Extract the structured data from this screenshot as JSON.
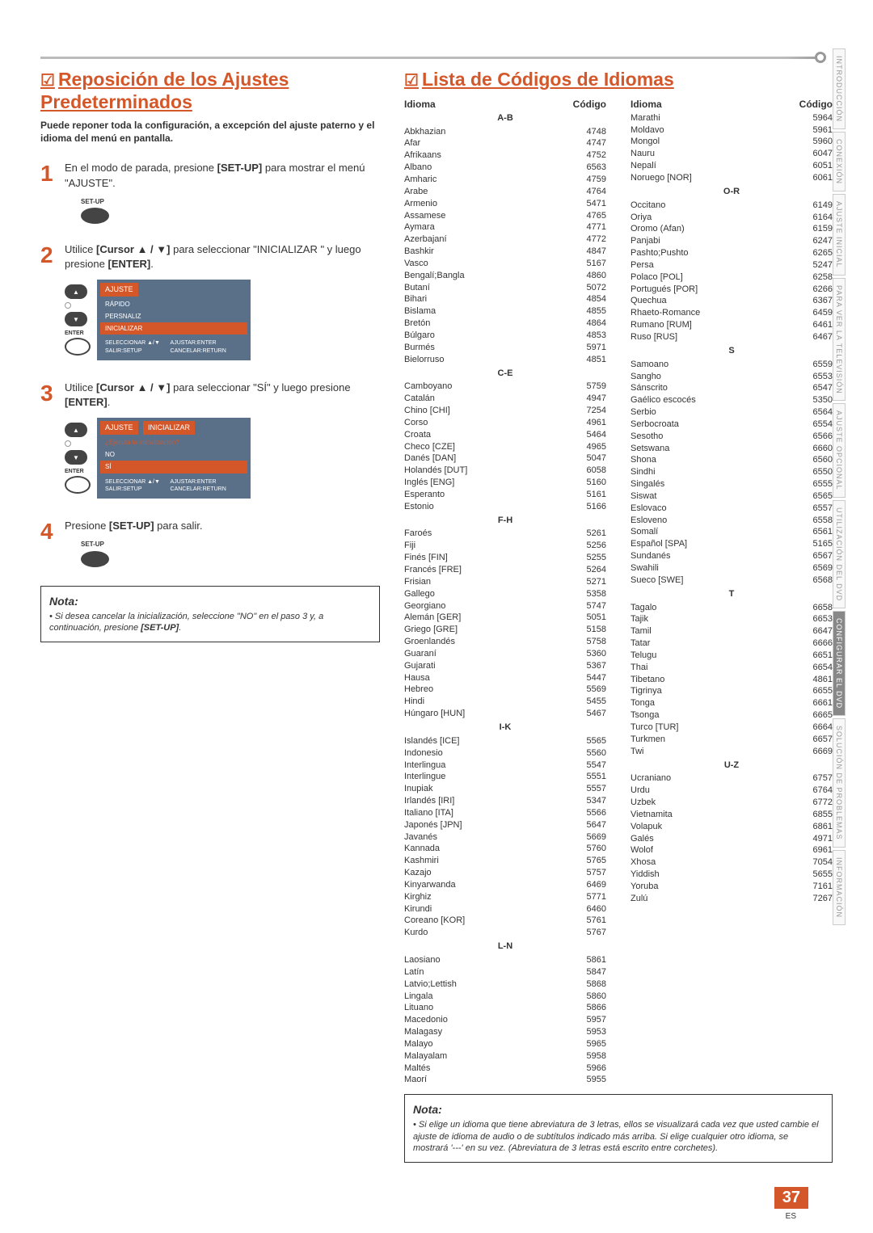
{
  "sideTabs": [
    "INTRODUCCIÓN",
    "CONEXIÓN",
    "AJUSTE INICIAL",
    "PARA VER LA TELEVISIÓN",
    "AJUSTE OPCIONAL",
    "UTILIZACIÓN DEL DVD",
    "CONFIGURAR EL DVD",
    "SOLUCIÓN DE PROBLEMAS",
    "INFORMACIÓN"
  ],
  "left": {
    "title": "Reposición de los Ajustes Predeterminados",
    "intro": "Puede reponer toda la configuración, a excepción del ajuste paterno y el idioma del menú en pantalla.",
    "step1": "En el modo de parada, presione <b>[SET-UP]</b> para mostrar el menú \"AJUSTE\".",
    "step2": "Utilice <b>[Cursor ▲ / ▼]</b> para seleccionar \"INICIALIZAR \" y luego presione <b>[ENTER]</b>.",
    "step3": "Utilice <b>[Cursor ▲ / ▼]</b> para seleccionar \"SÍ\" y luego presione <b>[ENTER]</b>.",
    "step4": "Presione <b>[SET-UP]</b> para salir.",
    "btnLabel": "SET-UP",
    "enterLabel": "ENTER",
    "menu1": {
      "title": "AJUSTE",
      "items": [
        "RÁPIDO",
        "PERSNALIZ",
        "INICIALIZAR"
      ],
      "footL": "SELECCIONAR ▲/▼\nSALIR:SETUP",
      "footR": "AJUSTAR:ENTER\nCANCELAR:RETURN"
    },
    "menu2": {
      "title": "AJUSTE",
      "tab": "INICIALIZAR",
      "prompt": "¿Ejecuta la inicialización?",
      "no": "NO",
      "si": "SÍ"
    },
    "notaTitle": "Nota:",
    "notaText": "Si desea cancelar la inicialización, seleccione \"NO\" en el paso 3 y, a continuación, presione <b>[SET-UP]</b>."
  },
  "right": {
    "title": "Lista de Códigos de Idiomas",
    "hIdioma": "Idioma",
    "hCodigo": "Código",
    "notaTitle": "Nota:",
    "notaText": "Si elige un idioma que tiene abreviatura de 3 letras, ellos se visualizará cada vez que usted cambie el ajuste de idioma de audio o de subtítulos indicado más arriba. Si elige cualquier otro idioma, se mostrará '---' en su vez. (Abreviatura de 3 letras está escrito entre corchetes).",
    "col1": [
      {
        "s": "A-B"
      },
      {
        "n": "Abkhazian",
        "c": "4748"
      },
      {
        "n": "Afar",
        "c": "4747"
      },
      {
        "n": "Afrikaans",
        "c": "4752"
      },
      {
        "n": "Albano",
        "c": "6563"
      },
      {
        "n": "Amharic",
        "c": "4759"
      },
      {
        "n": "Arabe",
        "c": "4764"
      },
      {
        "n": "Armenio",
        "c": "5471"
      },
      {
        "n": "Assamese",
        "c": "4765"
      },
      {
        "n": "Aymara",
        "c": "4771"
      },
      {
        "n": "Azerbajaní",
        "c": "4772"
      },
      {
        "n": "Bashkir",
        "c": "4847"
      },
      {
        "n": "Vasco",
        "c": "5167"
      },
      {
        "n": "Bengalí;Bangla",
        "c": "4860"
      },
      {
        "n": "Butaní",
        "c": "5072"
      },
      {
        "n": "Bihari",
        "c": "4854"
      },
      {
        "n": "Bislama",
        "c": "4855"
      },
      {
        "n": "Bretón",
        "c": "4864"
      },
      {
        "n": "Búlgaro",
        "c": "4853"
      },
      {
        "n": "Burmés",
        "c": "5971"
      },
      {
        "n": "Bielorruso",
        "c": "4851"
      },
      {
        "s": "C-E"
      },
      {
        "n": "Camboyano",
        "c": "5759"
      },
      {
        "n": "Catalán",
        "c": "4947"
      },
      {
        "n": "Chino [CHI]",
        "c": "7254"
      },
      {
        "n": "Corso",
        "c": "4961"
      },
      {
        "n": "Croata",
        "c": "5464"
      },
      {
        "n": "Checo [CZE]",
        "c": "4965"
      },
      {
        "n": "Danés [DAN]",
        "c": "5047"
      },
      {
        "n": "Holandés [DUT]",
        "c": "6058"
      },
      {
        "n": "Inglés [ENG]",
        "c": "5160"
      },
      {
        "n": "Esperanto",
        "c": "5161"
      },
      {
        "n": "Estonio",
        "c": "5166"
      },
      {
        "s": "F-H"
      },
      {
        "n": "Faroés",
        "c": "5261"
      },
      {
        "n": "Fiji",
        "c": "5256"
      },
      {
        "n": "Finés [FIN]",
        "c": "5255"
      },
      {
        "n": "Francés [FRE]",
        "c": "5264"
      },
      {
        "n": "Frisian",
        "c": "5271"
      },
      {
        "n": "Gallego",
        "c": "5358"
      },
      {
        "n": "Georgiano",
        "c": "5747"
      },
      {
        "n": "Alemán [GER]",
        "c": "5051"
      },
      {
        "n": "Griego [GRE]",
        "c": "5158"
      },
      {
        "n": "Groenlandés",
        "c": "5758"
      },
      {
        "n": "Guaraní",
        "c": "5360"
      },
      {
        "n": "Gujarati",
        "c": "5367"
      },
      {
        "n": "Hausa",
        "c": "5447"
      },
      {
        "n": "Hebreo",
        "c": "5569"
      },
      {
        "n": "Hindi",
        "c": "5455"
      },
      {
        "n": "Húngaro [HUN]",
        "c": "5467"
      },
      {
        "s": "I-K"
      },
      {
        "n": "Islandés [ICE]",
        "c": "5565"
      },
      {
        "n": "Indonesio",
        "c": "5560"
      },
      {
        "n": "Interlingua",
        "c": "5547"
      },
      {
        "n": "Interlingue",
        "c": "5551"
      },
      {
        "n": "Inupiak",
        "c": "5557"
      },
      {
        "n": "Irlandés [IRI]",
        "c": "5347"
      },
      {
        "n": "Italiano [ITA]",
        "c": "5566"
      },
      {
        "n": "Japonés [JPN]",
        "c": "5647"
      },
      {
        "n": "Javanés",
        "c": "5669"
      },
      {
        "n": "Kannada",
        "c": "5760"
      },
      {
        "n": "Kashmiri",
        "c": "5765"
      },
      {
        "n": "Kazajo",
        "c": "5757"
      },
      {
        "n": "Kinyarwanda",
        "c": "6469"
      },
      {
        "n": "Kirghiz",
        "c": "5771"
      },
      {
        "n": "Kirundi",
        "c": "6460"
      },
      {
        "n": "Coreano [KOR]",
        "c": "5761"
      },
      {
        "n": "Kurdo",
        "c": "5767"
      },
      {
        "s": "L-N"
      },
      {
        "n": "Laosiano",
        "c": "5861"
      },
      {
        "n": "Latín",
        "c": "5847"
      },
      {
        "n": "Latvio;Lettish",
        "c": "5868"
      },
      {
        "n": "Lingala",
        "c": "5860"
      },
      {
        "n": "Lituano",
        "c": "5866"
      },
      {
        "n": "Macedonio",
        "c": "5957"
      },
      {
        "n": "Malagasy",
        "c": "5953"
      },
      {
        "n": "Malayo",
        "c": "5965"
      },
      {
        "n": "Malayalam",
        "c": "5958"
      },
      {
        "n": "Maltés",
        "c": "5966"
      },
      {
        "n": "Maorí",
        "c": "5955"
      }
    ],
    "col2": [
      {
        "n": "Marathi",
        "c": "5964"
      },
      {
        "n": "Moldavo",
        "c": "5961"
      },
      {
        "n": "Mongol",
        "c": "5960"
      },
      {
        "n": "Nauru",
        "c": "6047"
      },
      {
        "n": "Nepalí",
        "c": "6051"
      },
      {
        "n": "Noruego [NOR]",
        "c": "6061"
      },
      {
        "s": "O-R"
      },
      {
        "n": "Occitano",
        "c": "6149"
      },
      {
        "n": "Oriya",
        "c": "6164"
      },
      {
        "n": "Oromo (Afan)",
        "c": "6159"
      },
      {
        "n": "Panjabi",
        "c": "6247"
      },
      {
        "n": "Pashto;Pushto",
        "c": "6265"
      },
      {
        "n": "Persa",
        "c": "5247"
      },
      {
        "n": "Polaco [POL]",
        "c": "6258"
      },
      {
        "n": "Portugués [POR]",
        "c": "6266"
      },
      {
        "n": "Quechua",
        "c": "6367"
      },
      {
        "n": "Rhaeto-Romance",
        "c": "6459"
      },
      {
        "n": "Rumano [RUM]",
        "c": "6461"
      },
      {
        "n": "Ruso [RUS]",
        "c": "6467"
      },
      {
        "s": "S"
      },
      {
        "n": "Samoano",
        "c": "6559"
      },
      {
        "n": "Sangho",
        "c": "6553"
      },
      {
        "n": "Sánscrito",
        "c": "6547"
      },
      {
        "n": "Gaélico escocés",
        "c": "5350"
      },
      {
        "n": "Serbio",
        "c": "6564"
      },
      {
        "n": "Serbocroata",
        "c": "6554"
      },
      {
        "n": "Sesotho",
        "c": "6566"
      },
      {
        "n": "Setswana",
        "c": "6660"
      },
      {
        "n": "Shona",
        "c": "6560"
      },
      {
        "n": "Sindhi",
        "c": "6550"
      },
      {
        "n": "Singalés",
        "c": "6555"
      },
      {
        "n": "Siswat",
        "c": "6565"
      },
      {
        "n": "Eslovaco",
        "c": "6557"
      },
      {
        "n": "Esloveno",
        "c": "6558"
      },
      {
        "n": "Somalí",
        "c": "6561"
      },
      {
        "n": "Español [SPA]",
        "c": "5165"
      },
      {
        "n": "Sundanés",
        "c": "6567"
      },
      {
        "n": "Swahili",
        "c": "6569"
      },
      {
        "n": "Sueco [SWE]",
        "c": "6568"
      },
      {
        "s": "T"
      },
      {
        "n": "Tagalo",
        "c": "6658"
      },
      {
        "n": "Tajik",
        "c": "6653"
      },
      {
        "n": "Tamil",
        "c": "6647"
      },
      {
        "n": "Tatar",
        "c": "6666"
      },
      {
        "n": "Telugu",
        "c": "6651"
      },
      {
        "n": "Thai",
        "c": "6654"
      },
      {
        "n": "Tibetano",
        "c": "4861"
      },
      {
        "n": "Tigrinya",
        "c": "6655"
      },
      {
        "n": "Tonga",
        "c": "6661"
      },
      {
        "n": "Tsonga",
        "c": "6665"
      },
      {
        "n": "Turco [TUR]",
        "c": "6664"
      },
      {
        "n": "Turkmen",
        "c": "6657"
      },
      {
        "n": "Twi",
        "c": "6669"
      },
      {
        "s": "U-Z"
      },
      {
        "n": "Ucraniano",
        "c": "6757"
      },
      {
        "n": "Urdu",
        "c": "6764"
      },
      {
        "n": "Uzbek",
        "c": "6772"
      },
      {
        "n": "Vietnamita",
        "c": "6855"
      },
      {
        "n": "Volapuk",
        "c": "6861"
      },
      {
        "n": "Galés",
        "c": "4971"
      },
      {
        "n": "Wolof",
        "c": "6961"
      },
      {
        "n": "Xhosa",
        "c": "7054"
      },
      {
        "n": "Yiddish",
        "c": "5655"
      },
      {
        "n": "Yoruba",
        "c": "7161"
      },
      {
        "n": "Zulú",
        "c": "7267"
      }
    ]
  },
  "pageNum": "37",
  "pageES": "ES"
}
